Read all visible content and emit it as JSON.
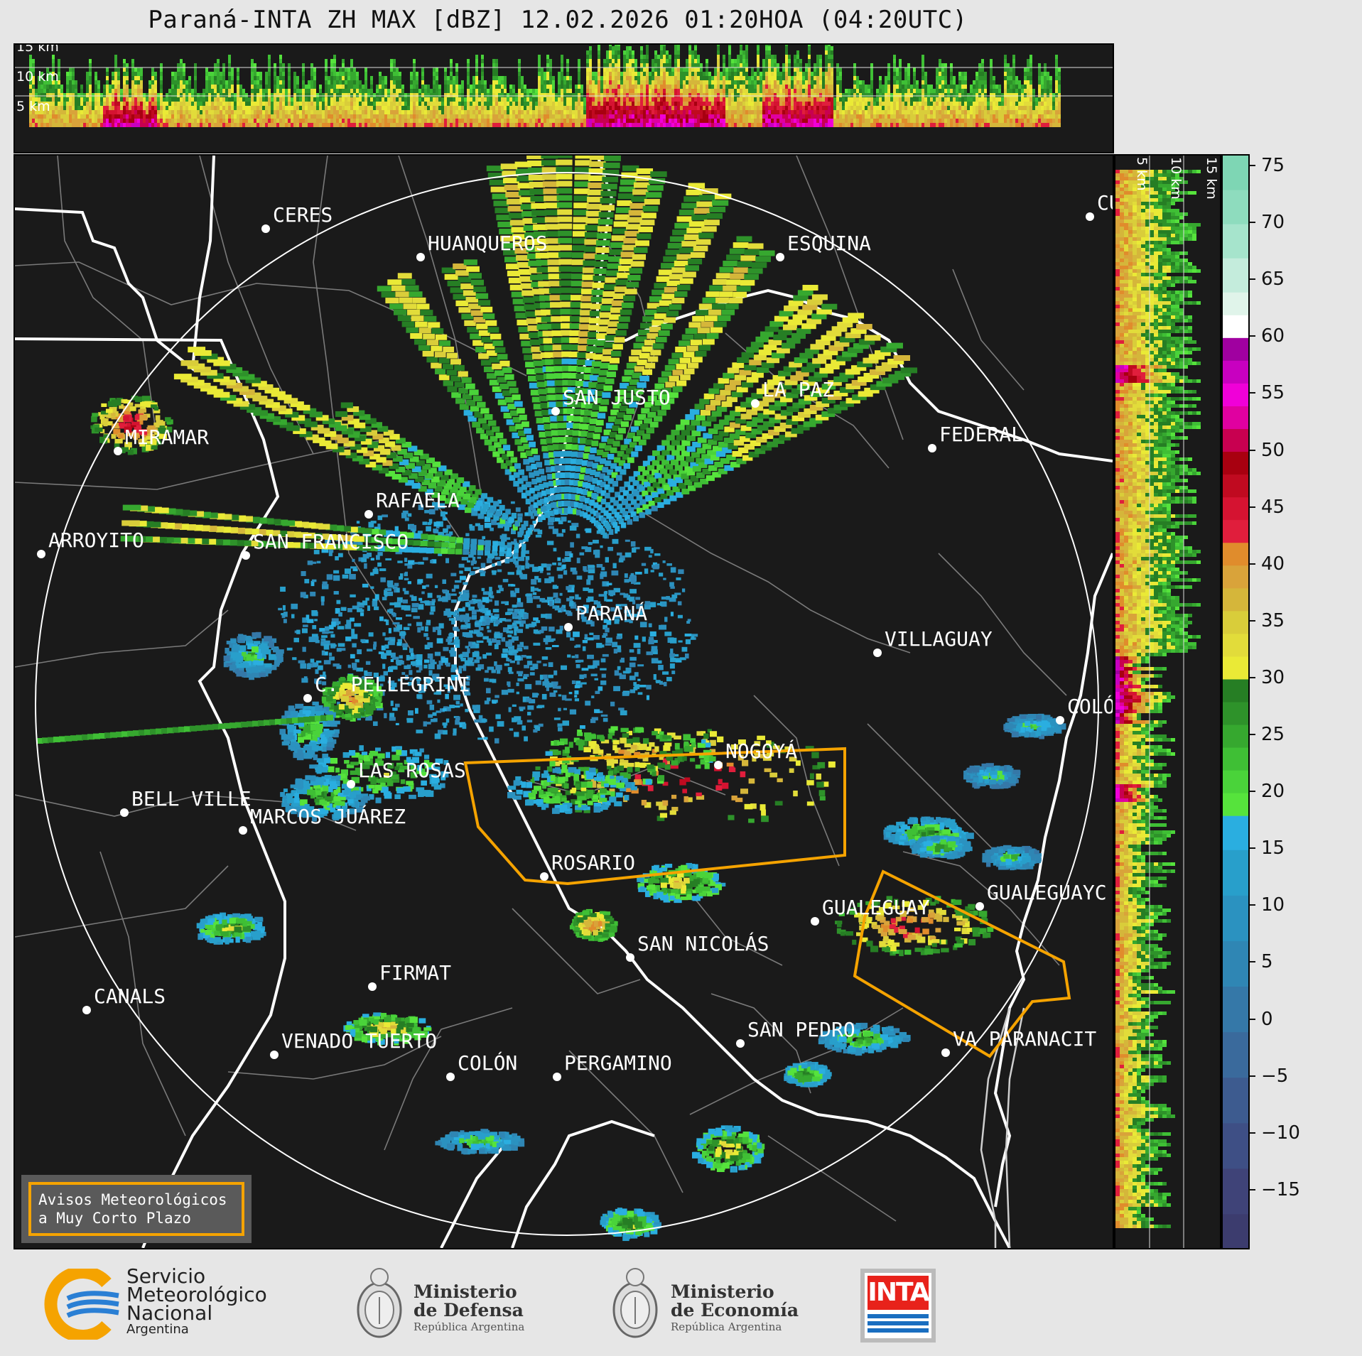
{
  "title": "Paraná-INTA ZH MAX [dBZ] 12.02.2026 01:20HOA (04:20UTC)",
  "top_panel": {
    "height_labels": [
      "15 km",
      "10 km",
      "5 km"
    ]
  },
  "side_panel": {
    "height_labels": [
      "5 km",
      "10 km",
      "15 km"
    ]
  },
  "colorbar": {
    "unit": "dBZ",
    "ticks": [
      "75",
      "70",
      "65",
      "60",
      "55",
      "50",
      "45",
      "40",
      "35",
      "30",
      "25",
      "20",
      "15",
      "10",
      "5",
      "0",
      "−5",
      "−10",
      "−15"
    ],
    "range": [
      -20,
      76
    ],
    "bands": [
      {
        "from": -20,
        "to": -17,
        "color": "#3c3c6e"
      },
      {
        "from": -17,
        "to": -13,
        "color": "#3f4378"
      },
      {
        "from": -13,
        "to": -9,
        "color": "#3e4f85"
      },
      {
        "from": -9,
        "to": -5,
        "color": "#3d5b8f"
      },
      {
        "from": -5,
        "to": -1,
        "color": "#3a6a9c"
      },
      {
        "from": -1,
        "to": 3,
        "color": "#3578a8"
      },
      {
        "from": 3,
        "to": 7,
        "color": "#2f86b4"
      },
      {
        "from": 7,
        "to": 11,
        "color": "#2b92c0"
      },
      {
        "from": 11,
        "to": 15,
        "color": "#289fcb"
      },
      {
        "from": 15,
        "to": 18,
        "color": "#2aaee0"
      },
      {
        "from": 18,
        "to": 20,
        "color": "#56e33c"
      },
      {
        "from": 20,
        "to": 22,
        "color": "#4ad33a"
      },
      {
        "from": 22,
        "to": 24,
        "color": "#3fbf35"
      },
      {
        "from": 24,
        "to": 26,
        "color": "#36a82f"
      },
      {
        "from": 26,
        "to": 28,
        "color": "#2e922a"
      },
      {
        "from": 28,
        "to": 30,
        "color": "#267e24"
      },
      {
        "from": 30,
        "to": 32,
        "color": "#eaea36"
      },
      {
        "from": 32,
        "to": 34,
        "color": "#e2dc3a"
      },
      {
        "from": 34,
        "to": 36,
        "color": "#d9cd3a"
      },
      {
        "from": 36,
        "to": 38,
        "color": "#d5b63a"
      },
      {
        "from": 38,
        "to": 40,
        "color": "#d9a33a"
      },
      {
        "from": 40,
        "to": 42,
        "color": "#e08c2c"
      },
      {
        "from": 42,
        "to": 44,
        "color": "#e01e3c"
      },
      {
        "from": 44,
        "to": 46,
        "color": "#d51331"
      },
      {
        "from": 46,
        "to": 48,
        "color": "#c00a20"
      },
      {
        "from": 48,
        "to": 50,
        "color": "#a80010"
      },
      {
        "from": 50,
        "to": 52,
        "color": "#c80050"
      },
      {
        "from": 52,
        "to": 54,
        "color": "#e000a0"
      },
      {
        "from": 54,
        "to": 56,
        "color": "#f000d8"
      },
      {
        "from": 56,
        "to": 58,
        "color": "#c800c0"
      },
      {
        "from": 58,
        "to": 60,
        "color": "#a000a0"
      },
      {
        "from": 60,
        "to": 62,
        "color": "#ffffff"
      },
      {
        "from": 62,
        "to": 64,
        "color": "#e0f4ea"
      },
      {
        "from": 64,
        "to": 67,
        "color": "#c4ecdc"
      },
      {
        "from": 67,
        "to": 70,
        "color": "#a6e4cc"
      },
      {
        "from": 70,
        "to": 73,
        "color": "#8edcbe"
      },
      {
        "from": 73,
        "to": 76,
        "color": "#7ed6b4"
      }
    ]
  },
  "cities": [
    {
      "name": "CERES",
      "label": "CERES"
    },
    {
      "name": "HUANQUEROS",
      "label": "HUANQUEROS"
    },
    {
      "name": "ESQUINA",
      "label": "ESQUINA"
    },
    {
      "name": "CURUZU",
      "label": "CU"
    },
    {
      "name": "SAN JUSTO",
      "label": "SAN JUSTO"
    },
    {
      "name": "LA PAZ",
      "label": "LA PAZ"
    },
    {
      "name": "MIRAMAR",
      "label": "MIRAMAR"
    },
    {
      "name": "FEDERAL",
      "label": "FEDERAL"
    },
    {
      "name": "RAFAELA",
      "label": "RAFAELA"
    },
    {
      "name": "ARROYITO",
      "label": "ARROYITO"
    },
    {
      "name": "SAN FRANCISCO",
      "label": "SAN FRANCISCO"
    },
    {
      "name": "PARANA",
      "label": "PARANÁ"
    },
    {
      "name": "VILLAGUAY",
      "label": "VILLAGUAY"
    },
    {
      "name": "C. PELLEGRINI",
      "label": "C. PELLEGRINI"
    },
    {
      "name": "COLON-ER",
      "label": "COLÓ"
    },
    {
      "name": "NOGOYA",
      "label": "NOGOYÁ"
    },
    {
      "name": "LAS ROSAS",
      "label": "LAS ROSAS"
    },
    {
      "name": "BELL VILLE",
      "label": "BELL VILLE"
    },
    {
      "name": "MARCOS JUAREZ",
      "label": "MARCOS JUÁREZ"
    },
    {
      "name": "ROSARIO",
      "label": "ROSARIO"
    },
    {
      "name": "GUALEGUAYCHU",
      "label": "GUALEGUAYC"
    },
    {
      "name": "GUALEGUAY",
      "label": "GUALEGUAY"
    },
    {
      "name": "SAN NICOLAS",
      "label": "SAN NICOLÁS"
    },
    {
      "name": "FIRMAT",
      "label": "FIRMAT"
    },
    {
      "name": "CANALS",
      "label": "CANALS"
    },
    {
      "name": "SAN PEDRO",
      "label": "SAN PEDRO"
    },
    {
      "name": "VILLA PARANACITO",
      "label": "VA PARANACIT"
    },
    {
      "name": "VENADO TUERTO",
      "label": "VENADO TUERTO"
    },
    {
      "name": "COLON-BA",
      "label": "COLÓN"
    },
    {
      "name": "PERGAMINO",
      "label": "PERGAMINO"
    }
  ],
  "warning_box": {
    "line1": "Avisos Meteorológicos",
    "line2": "a Muy Corto Plazo",
    "color": "#f5a300"
  },
  "logos": {
    "smn": {
      "line1": "Servicio",
      "line2": "Meteorológico",
      "line3": "Nacional",
      "line4": "Argentina"
    },
    "defensa": {
      "line1": "Ministerio",
      "line2": "de Defensa",
      "line3": "República Argentina"
    },
    "economia": {
      "line1": "Ministerio",
      "line2": "de Economía",
      "line3": "República Argentina"
    },
    "inta": {
      "text": "INTA"
    }
  },
  "colors": {
    "background": "#1a1a1a",
    "range_ring": "#ffffff",
    "warning": "#f5a300",
    "province_border": "#ffffff",
    "dept_border": "#888888"
  }
}
